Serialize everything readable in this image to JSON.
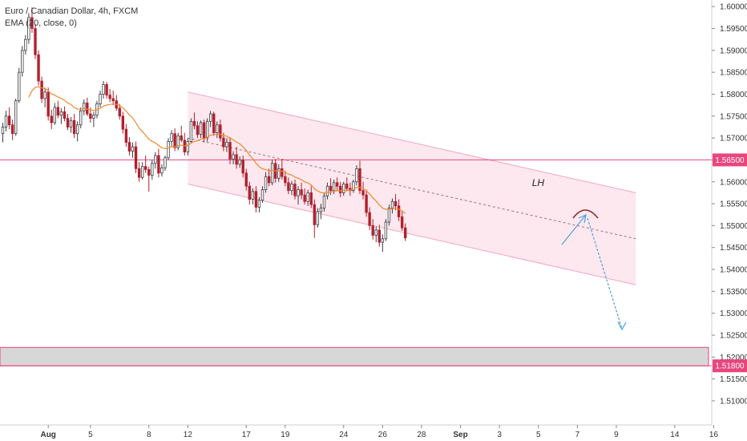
{
  "header": {
    "title": "Euro / Canadian Dollar, 4h, FXCM",
    "indicator": "EMA (20, close, 0)"
  },
  "colors": {
    "up": "#3b3f45",
    "down": "#b2202e",
    "ema": "#ef8a2b",
    "level": "#e8467c",
    "channel_fill": "#fce8ee",
    "channel_line": "#f2a7bc",
    "zone_fill": "#d7d7d7",
    "arrow": "#4aa3df",
    "arc": "#8b2a2a"
  },
  "chart_data": {
    "type": "candlestick",
    "symbol": "EURCAD",
    "timeframe": "4h",
    "ylim": [
      1.5045,
      1.6015
    ],
    "y_ticks": [
      "1.60000",
      "1.59500",
      "1.59000",
      "1.58500",
      "1.58000",
      "1.57500",
      "1.57000",
      "1.56500",
      "1.56000",
      "1.55500",
      "1.55000",
      "1.54500",
      "1.54000",
      "1.53500",
      "1.53000",
      "1.52500",
      "1.52000",
      "1.51500",
      "1.51000"
    ],
    "x_ticks": [
      {
        "label": "Aug",
        "bar": 14
      },
      {
        "label": "5",
        "bar": 27
      },
      {
        "label": "8",
        "bar": 45
      },
      {
        "label": "12",
        "bar": 57
      },
      {
        "label": "17",
        "bar": 75
      },
      {
        "label": "19",
        "bar": 87
      },
      {
        "label": "24",
        "bar": 105
      },
      {
        "label": "26",
        "bar": 117
      },
      {
        "label": "28",
        "bar": 129
      },
      {
        "label": "Sep",
        "bar": 141
      },
      {
        "label": "3",
        "bar": 153
      },
      {
        "label": "5",
        "bar": 165
      },
      {
        "label": "7",
        "bar": 177
      },
      {
        "label": "9",
        "bar": 189
      },
      {
        "label": "14",
        "bar": 207
      },
      {
        "label": "16",
        "bar": 219
      }
    ],
    "candles": [
      [
        1.571,
        1.5735,
        1.569,
        1.5725
      ],
      [
        1.5725,
        1.5762,
        1.5715,
        1.575
      ],
      [
        1.575,
        1.577,
        1.572,
        1.573
      ],
      [
        1.573,
        1.5742,
        1.5695,
        1.571
      ],
      [
        1.571,
        1.579,
        1.5705,
        1.5785
      ],
      [
        1.5785,
        1.586,
        1.578,
        1.585
      ],
      [
        1.585,
        1.591,
        1.584,
        1.59
      ],
      [
        1.59,
        1.5935,
        1.589,
        1.5925
      ],
      [
        1.5925,
        1.5985,
        1.5915,
        1.5975
      ],
      [
        1.5975,
        1.5998,
        1.594,
        1.595
      ],
      [
        1.595,
        1.596,
        1.588,
        1.589
      ],
      [
        1.589,
        1.59,
        1.582,
        1.583
      ],
      [
        1.583,
        1.584,
        1.578,
        1.579
      ],
      [
        1.579,
        1.5815,
        1.577,
        1.5805
      ],
      [
        1.5805,
        1.5815,
        1.574,
        1.575
      ],
      [
        1.575,
        1.5765,
        1.572,
        1.5735
      ],
      [
        1.5735,
        1.578,
        1.573,
        1.577
      ],
      [
        1.577,
        1.5785,
        1.5745,
        1.5752
      ],
      [
        1.5752,
        1.5768,
        1.5732,
        1.576
      ],
      [
        1.576,
        1.5772,
        1.5738,
        1.5745
      ],
      [
        1.5745,
        1.5755,
        1.5718,
        1.5725
      ],
      [
        1.5725,
        1.5748,
        1.5712,
        1.574
      ],
      [
        1.574,
        1.5755,
        1.57,
        1.571
      ],
      [
        1.571,
        1.5738,
        1.5692,
        1.573
      ],
      [
        1.573,
        1.577,
        1.5722,
        1.5762
      ],
      [
        1.5762,
        1.5788,
        1.5752,
        1.578
      ],
      [
        1.578,
        1.5792,
        1.575,
        1.5755
      ],
      [
        1.5755,
        1.577,
        1.5735,
        1.5745
      ],
      [
        1.5745,
        1.576,
        1.5725,
        1.5752
      ],
      [
        1.5752,
        1.5785,
        1.5745,
        1.5778
      ],
      [
        1.5778,
        1.5808,
        1.577,
        1.58
      ],
      [
        1.58,
        1.583,
        1.579,
        1.5822
      ],
      [
        1.5822,
        1.5828,
        1.579,
        1.5798
      ],
      [
        1.5798,
        1.5812,
        1.5782,
        1.579
      ],
      [
        1.579,
        1.5808,
        1.5775,
        1.5785
      ],
      [
        1.5785,
        1.5798,
        1.5762,
        1.5768
      ],
      [
        1.5768,
        1.5778,
        1.5742,
        1.575
      ],
      [
        1.575,
        1.576,
        1.571,
        1.572
      ],
      [
        1.572,
        1.5732,
        1.568,
        1.569
      ],
      [
        1.569,
        1.5702,
        1.566,
        1.567
      ],
      [
        1.567,
        1.569,
        1.5655,
        1.568
      ],
      [
        1.568,
        1.5692,
        1.562,
        1.563
      ],
      [
        1.563,
        1.5645,
        1.56,
        1.561
      ],
      [
        1.561,
        1.5645,
        1.5605,
        1.5635
      ],
      [
        1.5635,
        1.566,
        1.562,
        1.5628
      ],
      [
        1.5628,
        1.5635,
        1.5578,
        1.5615
      ],
      [
        1.5615,
        1.565,
        1.5605,
        1.5642
      ],
      [
        1.5642,
        1.5668,
        1.563,
        1.566
      ],
      [
        1.566,
        1.5675,
        1.561,
        1.562
      ],
      [
        1.562,
        1.564,
        1.5612,
        1.5632
      ],
      [
        1.5632,
        1.566,
        1.5625,
        1.5655
      ],
      [
        1.5655,
        1.57,
        1.565,
        1.5692
      ],
      [
        1.5692,
        1.5718,
        1.568,
        1.571
      ],
      [
        1.571,
        1.5722,
        1.567,
        1.5678
      ],
      [
        1.5678,
        1.5712,
        1.5672,
        1.5705
      ],
      [
        1.5705,
        1.5728,
        1.569,
        1.5695
      ],
      [
        1.5695,
        1.5712,
        1.566,
        1.5668
      ],
      [
        1.5668,
        1.57,
        1.566,
        1.5692
      ],
      [
        1.5692,
        1.5745,
        1.5688,
        1.5738
      ],
      [
        1.5738,
        1.5758,
        1.572,
        1.5728
      ],
      [
        1.5728,
        1.5738,
        1.57,
        1.5708
      ],
      [
        1.5708,
        1.574,
        1.57,
        1.5735
      ],
      [
        1.5735,
        1.5742,
        1.569,
        1.57
      ],
      [
        1.57,
        1.5745,
        1.5692,
        1.5738
      ],
      [
        1.5738,
        1.5762,
        1.5725,
        1.5755
      ],
      [
        1.5755,
        1.576,
        1.5705,
        1.5712
      ],
      [
        1.5712,
        1.5738,
        1.57,
        1.573
      ],
      [
        1.573,
        1.5742,
        1.5692,
        1.57
      ],
      [
        1.57,
        1.5712,
        1.567,
        1.568
      ],
      [
        1.568,
        1.57,
        1.5668,
        1.569
      ],
      [
        1.569,
        1.5702,
        1.564,
        1.5652
      ],
      [
        1.5652,
        1.567,
        1.564,
        1.5662
      ],
      [
        1.5662,
        1.568,
        1.563,
        1.564
      ],
      [
        1.564,
        1.5658,
        1.5632,
        1.565
      ],
      [
        1.565,
        1.566,
        1.561,
        1.562
      ],
      [
        1.562,
        1.563,
        1.558,
        1.559
      ],
      [
        1.559,
        1.56,
        1.5548,
        1.556
      ],
      [
        1.556,
        1.5585,
        1.5548,
        1.5578
      ],
      [
        1.5578,
        1.559,
        1.553,
        1.5542
      ],
      [
        1.5542,
        1.5565,
        1.553,
        1.5558
      ],
      [
        1.5558,
        1.559,
        1.5552,
        1.5582
      ],
      [
        1.5582,
        1.5622,
        1.5575,
        1.5612
      ],
      [
        1.5612,
        1.563,
        1.559,
        1.5598
      ],
      [
        1.5598,
        1.565,
        1.5592,
        1.5642
      ],
      [
        1.5642,
        1.5652,
        1.5598,
        1.5608
      ],
      [
        1.5608,
        1.564,
        1.56,
        1.563
      ],
      [
        1.563,
        1.5652,
        1.5605,
        1.5612
      ],
      [
        1.5612,
        1.5625,
        1.559,
        1.5598
      ],
      [
        1.5598,
        1.561,
        1.5572,
        1.558
      ],
      [
        1.558,
        1.5602,
        1.557,
        1.5595
      ],
      [
        1.5595,
        1.5605,
        1.556,
        1.5568
      ],
      [
        1.5568,
        1.559,
        1.5548,
        1.5582
      ],
      [
        1.5582,
        1.5598,
        1.556,
        1.557
      ],
      [
        1.557,
        1.5585,
        1.5548,
        1.5555
      ],
      [
        1.5555,
        1.5582,
        1.5545,
        1.5575
      ],
      [
        1.5575,
        1.559,
        1.554,
        1.5548
      ],
      [
        1.5548,
        1.556,
        1.5472,
        1.5502
      ],
      [
        1.5502,
        1.554,
        1.5495,
        1.5532
      ],
      [
        1.5532,
        1.555,
        1.5515,
        1.554
      ],
      [
        1.554,
        1.5575,
        1.5532,
        1.5568
      ],
      [
        1.5568,
        1.5598,
        1.556,
        1.559
      ],
      [
        1.559,
        1.5608,
        1.557,
        1.558
      ],
      [
        1.558,
        1.5605,
        1.5572,
        1.5598
      ],
      [
        1.5598,
        1.561,
        1.558,
        1.559
      ],
      [
        1.559,
        1.56,
        1.5565,
        1.5575
      ],
      [
        1.5575,
        1.56,
        1.5568,
        1.5595
      ],
      [
        1.5595,
        1.561,
        1.5578,
        1.5585
      ],
      [
        1.5585,
        1.5598,
        1.5568,
        1.558
      ],
      [
        1.558,
        1.5605,
        1.5575,
        1.56
      ],
      [
        1.56,
        1.5638,
        1.5592,
        1.563
      ],
      [
        1.563,
        1.5648,
        1.5572,
        1.558
      ],
      [
        1.558,
        1.56,
        1.556,
        1.557
      ],
      [
        1.557,
        1.5582,
        1.552,
        1.553
      ],
      [
        1.553,
        1.5542,
        1.549,
        1.55
      ],
      [
        1.55,
        1.5515,
        1.5468,
        1.5478
      ],
      [
        1.5478,
        1.5498,
        1.5462,
        1.549
      ],
      [
        1.549,
        1.5502,
        1.5452,
        1.5462
      ],
      [
        1.5462,
        1.548,
        1.544,
        1.547
      ],
      [
        1.547,
        1.5515,
        1.5465,
        1.5508
      ],
      [
        1.5508,
        1.5548,
        1.55,
        1.554
      ],
      [
        1.554,
        1.5562,
        1.5528,
        1.5555
      ],
      [
        1.5555,
        1.5572,
        1.5535,
        1.5545
      ],
      [
        1.5545,
        1.556,
        1.551,
        1.552
      ],
      [
        1.552,
        1.5532,
        1.5488,
        1.5495
      ],
      [
        1.5495,
        1.5505,
        1.5465,
        1.5472
      ]
    ],
    "ema_period": 20,
    "levels": [
      {
        "price": 1.565,
        "label": "1.56500"
      },
      {
        "price": 1.518,
        "label": "1.51800"
      }
    ],
    "zone": {
      "top": 1.5222,
      "bottom": 1.518
    },
    "channel": {
      "start_bar": 57,
      "end_bar": 195,
      "upper": [
        1.5805,
        1.5575
      ],
      "lower": [
        1.5595,
        1.5365
      ]
    },
    "annotations": [
      {
        "text": "LH",
        "bar": 164,
        "price": 1.5598
      }
    ]
  }
}
